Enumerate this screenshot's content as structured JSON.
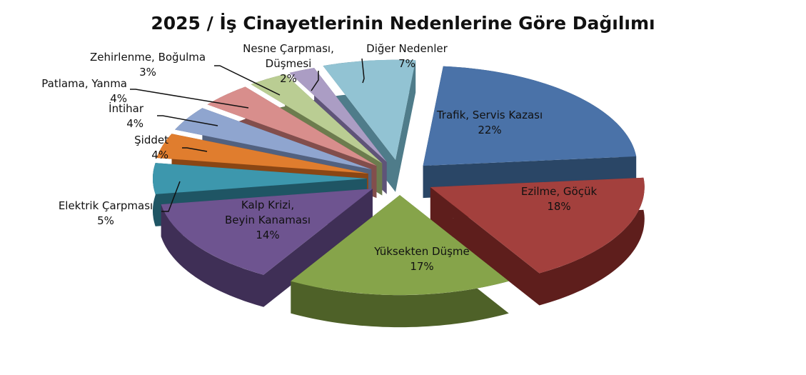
{
  "chart_data": {
    "type": "pie",
    "title": "2025 / İş Cinayetlerinin Nedenlerine Göre Dağılımı",
    "slices": [
      {
        "label": [
          "Trafik, Servis Kazası"
        ],
        "pct_label": "22%",
        "value": 22,
        "color": "#4a72a8",
        "side": "#2a4666"
      },
      {
        "label": [
          "Ezilme, Göçük"
        ],
        "pct_label": "18%",
        "value": 18,
        "color": "#a3403d",
        "side": "#5e1e1c"
      },
      {
        "label": [
          "Yüksekten Düşme"
        ],
        "pct_label": "17%",
        "value": 17,
        "color": "#86a44a",
        "side": "#4e6128"
      },
      {
        "label": [
          "Kalp Krizi,",
          "Beyin Kanaması"
        ],
        "pct_label": "14%",
        "value": 14,
        "color": "#6e5490",
        "side": "#3f2f56"
      },
      {
        "label": [
          "Elektrik Çarpması"
        ],
        "pct_label": "5%",
        "value": 5,
        "color": "#3d97ad",
        "side": "#1f5564"
      },
      {
        "label": [
          "Şiddet"
        ],
        "pct_label": "4%",
        "value": 4,
        "color": "#e07d2e",
        "side": "#8a4614"
      },
      {
        "label": [
          "İntihar"
        ],
        "pct_label": "4%",
        "value": 4,
        "color": "#8fa5cf",
        "side": "#52617f"
      },
      {
        "label": [
          "Patlama, Yanma"
        ],
        "pct_label": "4%",
        "value": 4,
        "color": "#d88e8c",
        "side": "#824e4c"
      },
      {
        "label": [
          "Zehirlenme, Boğulma"
        ],
        "pct_label": "3%",
        "value": 3,
        "color": "#bacd93",
        "side": "#6c7c4e"
      },
      {
        "label": [
          "Nesne Çarpması,",
          "Düşmesi"
        ],
        "pct_label": "2%",
        "value": 2,
        "color": "#ab9dc4",
        "side": "#5f5478"
      },
      {
        "label": [
          "Diğer Nedenler"
        ],
        "pct_label": "7%",
        "value": 7,
        "color": "#92c3d3",
        "side": "#4f7c8a"
      }
    ]
  }
}
